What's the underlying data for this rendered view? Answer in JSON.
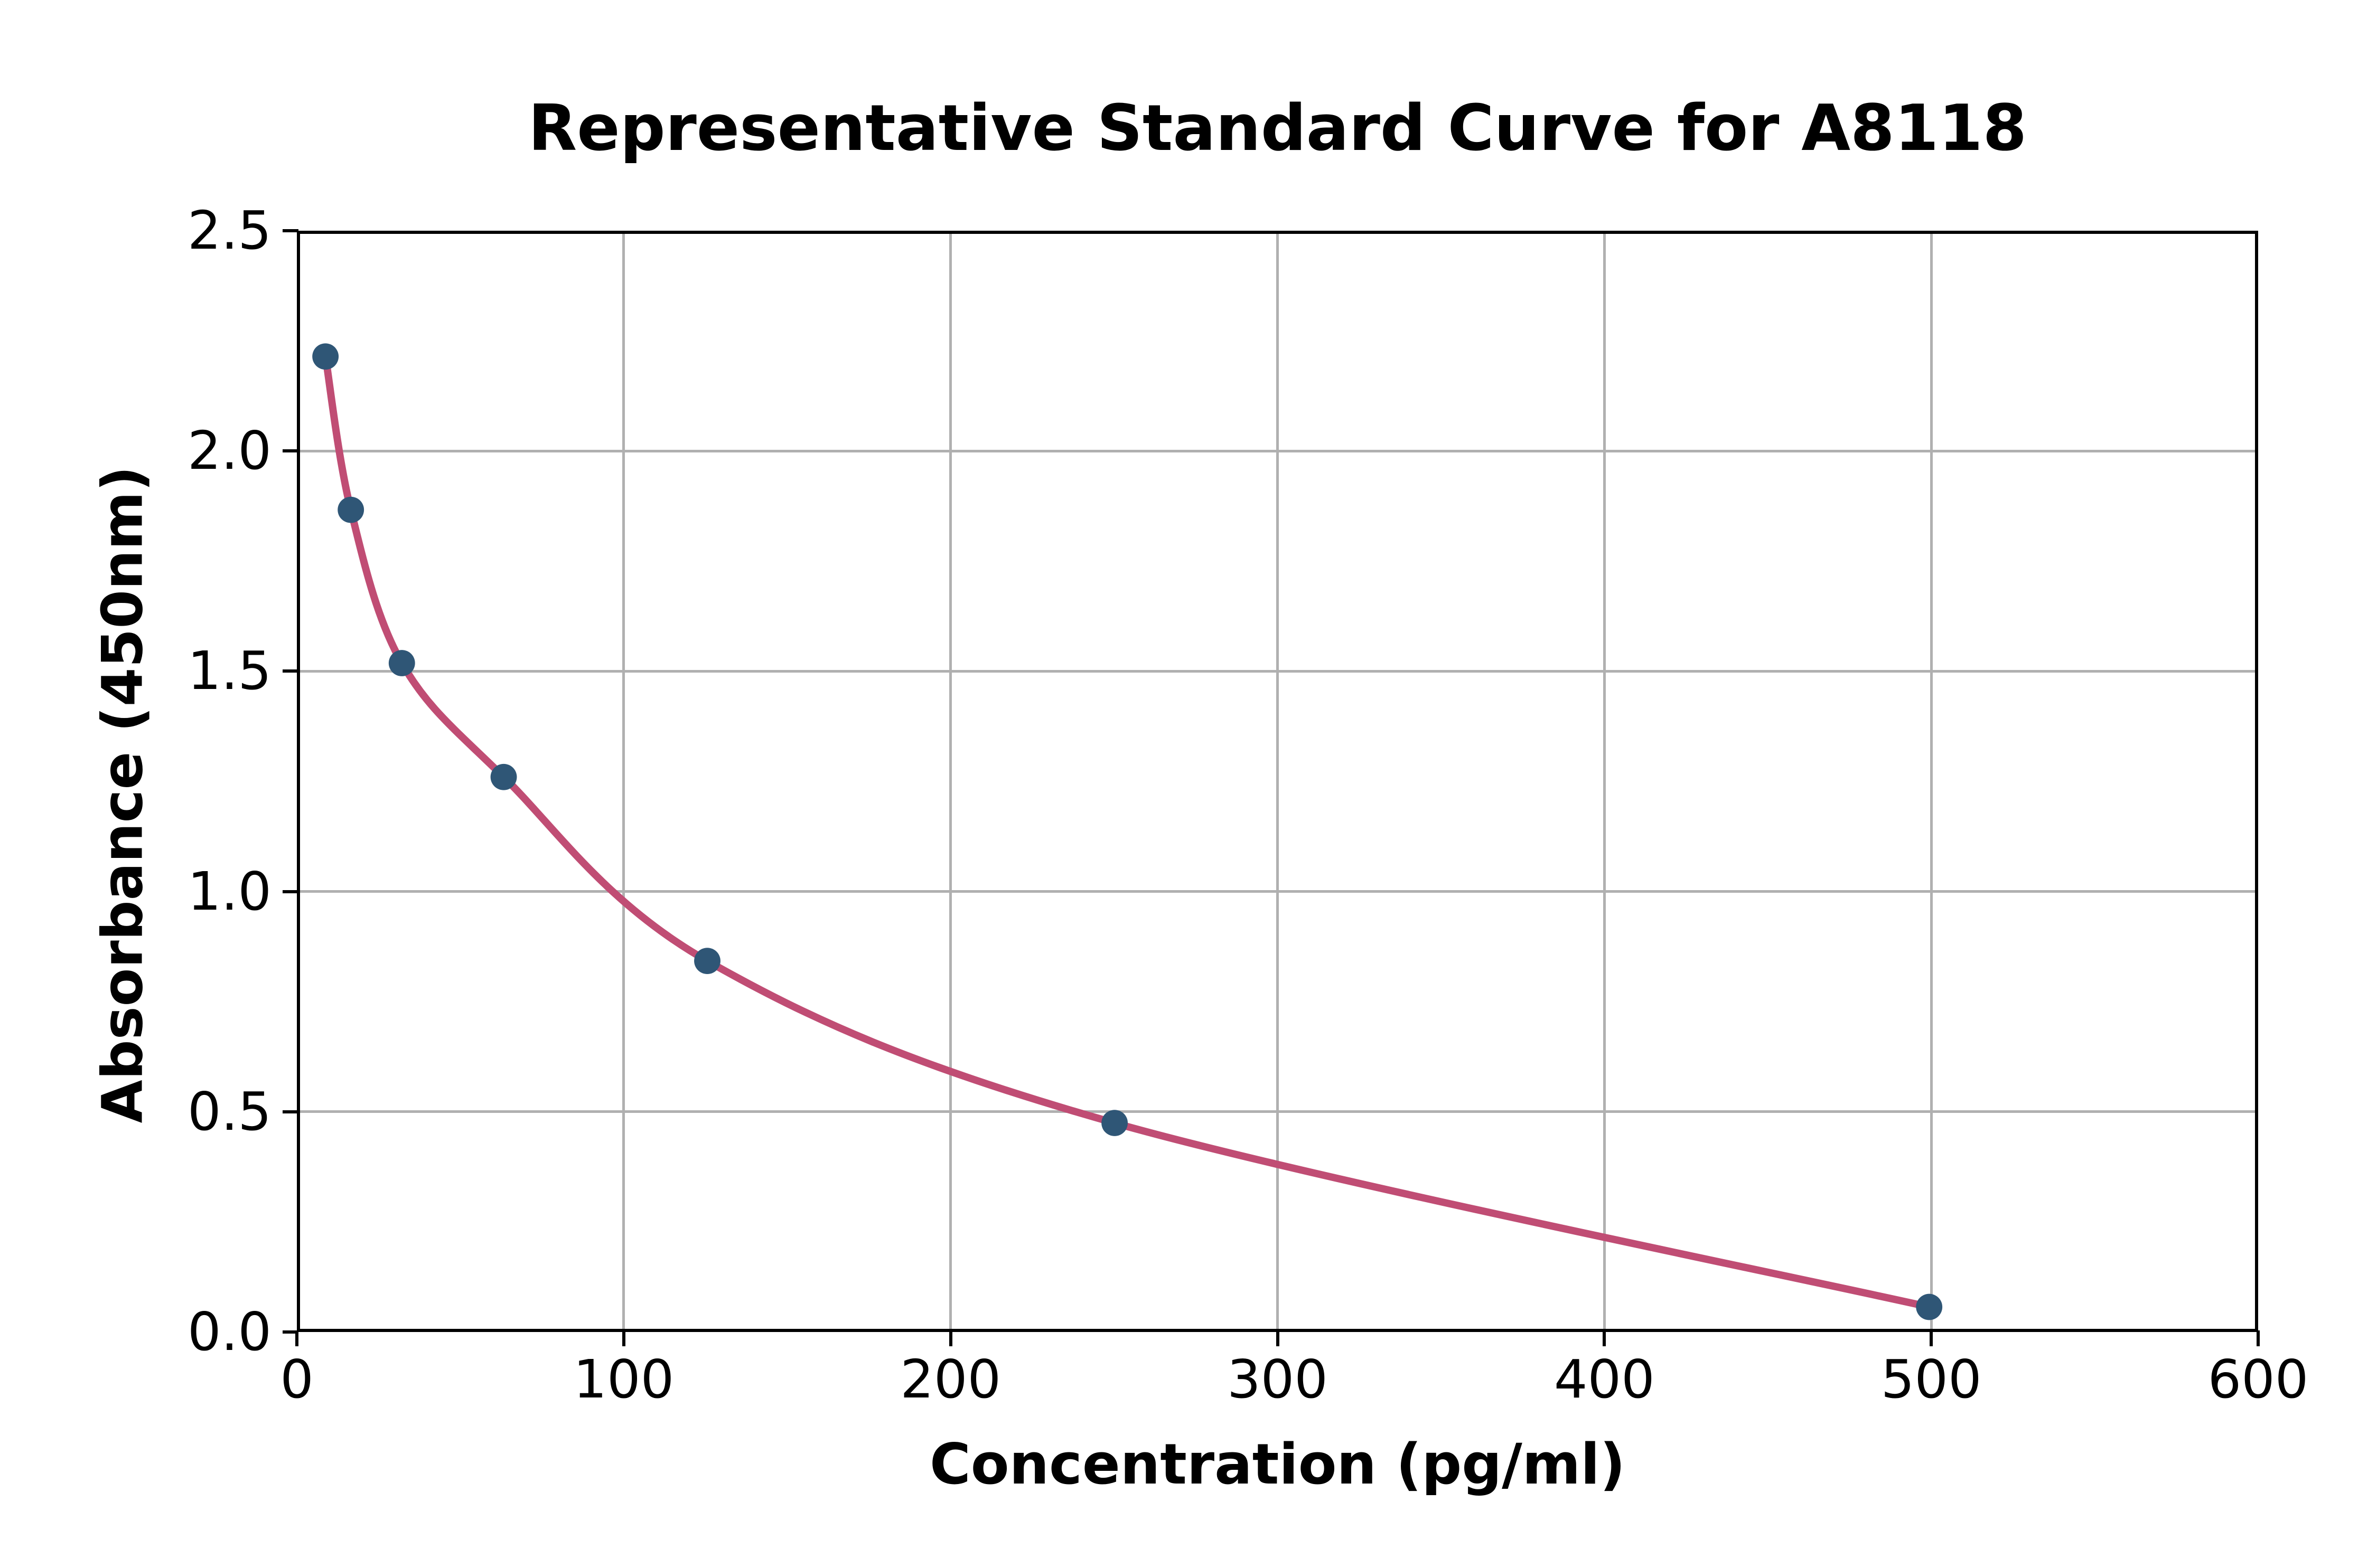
{
  "title": "Representative Standard Curve for A8118",
  "chart_data": {
    "type": "scatter",
    "title": "Representative Standard Curve for A8118",
    "xlabel": "Concentration (pg/ml)",
    "ylabel": "Absorbance (450nm)",
    "xlim": [
      0,
      600
    ],
    "ylim": [
      0,
      2.5
    ],
    "x_ticks": [
      0,
      100,
      200,
      300,
      400,
      500,
      600
    ],
    "y_ticks": [
      0.0,
      0.5,
      1.0,
      1.5,
      2.0,
      2.5
    ],
    "y_tick_decimals": 1,
    "grid": true,
    "legend": "none",
    "series": [
      {
        "name": "standard-points",
        "type": "scatter",
        "x": [
          7.8,
          15.6,
          31.25,
          62.5,
          125,
          250,
          500
        ],
        "y": [
          2.22,
          1.87,
          1.52,
          1.26,
          0.84,
          0.47,
          0.05
        ]
      },
      {
        "name": "fitted-curve",
        "type": "line",
        "x": [
          7.8,
          15.6,
          31.25,
          62.5,
          125,
          250,
          500
        ],
        "y": [
          2.22,
          1.87,
          1.52,
          1.26,
          0.84,
          0.47,
          0.05
        ]
      }
    ],
    "colors": {
      "marker": "#2F5676",
      "curve": "#C04D74",
      "grid": "#B0B0B0",
      "axis": "#000000",
      "background": "#FFFFFF"
    }
  }
}
